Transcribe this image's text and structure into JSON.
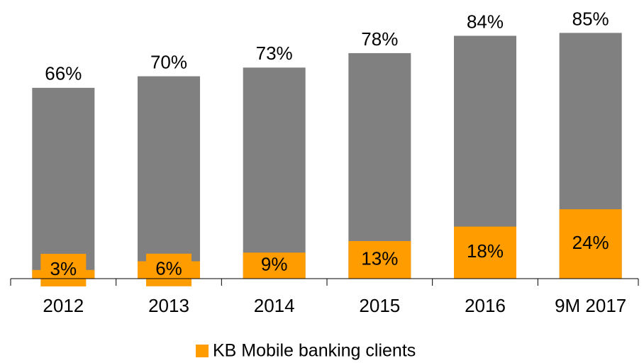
{
  "chart_data": {
    "type": "bar",
    "categories": [
      "2012",
      "2013",
      "2014",
      "2015",
      "2016",
      "9M 2017"
    ],
    "series": [
      {
        "color": "#808080",
        "values": [
          66,
          70,
          73,
          78,
          84,
          85
        ],
        "value_labels": [
          "66%",
          "70%",
          "73%",
          "78%",
          "84%",
          "85%"
        ]
      },
      {
        "name": "KB Mobile banking clients",
        "color": "#ff9c00",
        "values": [
          3,
          6,
          9,
          13,
          18,
          24
        ],
        "value_labels": [
          "3%",
          "6%",
          "9%",
          "13%",
          "18%",
          "24%"
        ]
      }
    ],
    "ylim": [
      0,
      90
    ],
    "legend": "bottom"
  }
}
